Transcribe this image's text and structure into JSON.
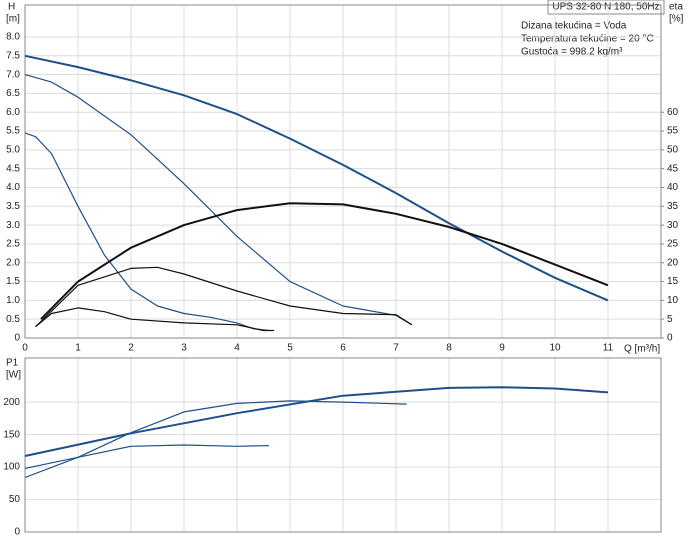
{
  "chart_data": [
    {
      "type": "line",
      "title": "UPS 32-80 N 180, 50Hz",
      "annotations": [
        "Dizana tekućina = Voda",
        "Temperatura tekućine = 20 °C",
        "Gustoća = 998.2 kg/m³"
      ],
      "y_label": "H",
      "y_unit": "[m]",
      "y2_label": "eta",
      "y2_unit": "[%]",
      "x_label": "Q [m³/h]",
      "xlim": [
        0,
        12
      ],
      "xticks": [
        0,
        1,
        2,
        3,
        4,
        5,
        6,
        7,
        8,
        9,
        10,
        11
      ],
      "ylim": [
        0,
        8.85
      ],
      "yticks": [
        0,
        0.5,
        {
          "value": 1,
          "label": "1.0"
        },
        1.5,
        {
          "value": 2,
          "label": "2.0"
        },
        2.5,
        {
          "value": 3,
          "label": "3.0"
        },
        3.5,
        {
          "value": 4,
          "label": "4.0"
        },
        4.5,
        {
          "value": 5,
          "label": "5.0"
        },
        5.5,
        {
          "value": 6,
          "label": "6.0"
        },
        6.5,
        {
          "value": 7,
          "label": "7.0"
        },
        7.5,
        {
          "value": 8,
          "label": "8.0"
        }
      ],
      "y2lim": [
        0,
        88.5
      ],
      "y2ticks": [
        0,
        5,
        10,
        15,
        20,
        25,
        30,
        35,
        40,
        45,
        50,
        55,
        60
      ],
      "grid": true,
      "series": [
        {
          "color": "#1f4f8a",
          "width": 2,
          "x": [
            0,
            1,
            2,
            3,
            4,
            5,
            6,
            7,
            8,
            9,
            10,
            11
          ],
          "values": [
            7.5,
            7.2,
            6.85,
            6.45,
            5.95,
            5.3,
            4.6,
            3.85,
            3.05,
            2.3,
            1.6,
            1.0
          ]
        },
        {
          "color": "#1f4f8a",
          "width": 1.2,
          "x": [
            0,
            0.5,
            1,
            2,
            3,
            4,
            5,
            6,
            7,
            7.3
          ],
          "values": [
            7.0,
            6.8,
            6.4,
            5.4,
            4.1,
            2.7,
            1.5,
            0.85,
            0.6,
            0.35
          ]
        },
        {
          "color": "#1f4f8a",
          "width": 1.2,
          "x": [
            0,
            0.2,
            0.5,
            1,
            1.5,
            2,
            2.5,
            3,
            3.5,
            4,
            4.3,
            4.6
          ],
          "values": [
            5.45,
            5.35,
            4.9,
            3.5,
            2.2,
            1.3,
            0.85,
            0.65,
            0.55,
            0.4,
            0.25,
            0.2
          ]
        },
        {
          "color": "#111111",
          "width": 2,
          "axis": "y2",
          "x": [
            0.3,
            1,
            2,
            3,
            4,
            5,
            6,
            7,
            8,
            9,
            10,
            11
          ],
          "values": [
            5,
            15,
            24,
            30,
            34,
            35.8,
            35.5,
            33,
            29.5,
            25,
            19.5,
            14
          ]
        },
        {
          "color": "#111111",
          "width": 1.2,
          "axis": "y2",
          "x": [
            0.2,
            1,
            2,
            2.5,
            3,
            4,
            5,
            6,
            7,
            7.3
          ],
          "values": [
            3,
            14,
            18.5,
            18.8,
            17,
            12.5,
            8.5,
            6.5,
            6.2,
            3.5
          ]
        },
        {
          "color": "#111111",
          "width": 1.2,
          "axis": "y2",
          "x": [
            0.2,
            0.5,
            1,
            1.5,
            2,
            3,
            4,
            4.5,
            4.7
          ],
          "values": [
            3,
            6.5,
            8,
            7,
            5,
            4,
            3.5,
            2,
            2
          ]
        }
      ]
    },
    {
      "type": "line",
      "y_label": "P1",
      "y_unit": "[W]",
      "xlim": [
        0,
        12
      ],
      "xticks": [
        0,
        1,
        2,
        3,
        4,
        5,
        6,
        7,
        8,
        9,
        10,
        11
      ],
      "ylim": [
        0,
        268
      ],
      "yticks": [
        0,
        50,
        100,
        150,
        200
      ],
      "grid": true,
      "series": [
        {
          "color": "#1f4f8a",
          "width": 2,
          "x": [
            0,
            2,
            4,
            6,
            8,
            9,
            10,
            11
          ],
          "values": [
            117,
            152,
            183,
            210,
            222,
            223,
            221,
            215
          ]
        },
        {
          "color": "#1f4f8a",
          "width": 1.2,
          "x": [
            0,
            1,
            2,
            3,
            4,
            5,
            6,
            7.2
          ],
          "values": [
            84,
            115,
            153,
            185,
            198,
            202,
            200,
            197
          ]
        },
        {
          "color": "#1f4f8a",
          "width": 1.2,
          "x": [
            0,
            1,
            2,
            3,
            4,
            4.6
          ],
          "values": [
            98,
            115,
            132,
            134,
            132,
            133
          ]
        }
      ]
    }
  ]
}
